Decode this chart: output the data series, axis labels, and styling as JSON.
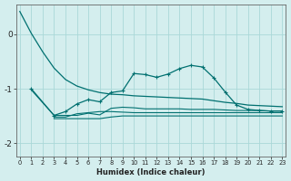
{
  "xlabel": "Humidex (Indice chaleur)",
  "background_color": "#d4eeee",
  "grid_color": "#aad8d8",
  "line_color": "#007070",
  "xlim": [
    -0.3,
    23.3
  ],
  "ylim": [
    -2.25,
    0.55
  ],
  "yticks": [
    0,
    -1,
    -2
  ],
  "xticks": [
    0,
    1,
    2,
    3,
    4,
    5,
    6,
    7,
    8,
    9,
    10,
    11,
    12,
    13,
    14,
    15,
    16,
    17,
    18,
    19,
    20,
    21,
    22,
    23
  ],
  "line_smooth_x": [
    0,
    1,
    2,
    3,
    4,
    5,
    6,
    7,
    8,
    9,
    10,
    11,
    12,
    13,
    14,
    15,
    16,
    17,
    18,
    19,
    20,
    21,
    22,
    23
  ],
  "line_smooth_y": [
    0.42,
    0.02,
    -0.32,
    -0.62,
    -0.83,
    -0.95,
    -1.02,
    -1.07,
    -1.1,
    -1.11,
    -1.13,
    -1.14,
    -1.15,
    -1.16,
    -1.17,
    -1.18,
    -1.19,
    -1.22,
    -1.25,
    -1.27,
    -1.3,
    -1.31,
    -1.32,
    -1.33
  ],
  "line_wave_x": [
    1,
    3,
    4,
    5,
    6,
    7,
    8,
    9,
    10,
    11,
    12,
    13,
    14,
    15,
    16,
    17,
    18,
    19,
    20,
    21,
    22,
    23
  ],
  "line_wave_y": [
    -1.0,
    -1.49,
    -1.42,
    -1.28,
    -1.2,
    -1.24,
    -1.07,
    -1.04,
    -0.72,
    -0.74,
    -0.79,
    -0.73,
    -0.63,
    -0.57,
    -0.6,
    -0.8,
    -1.06,
    -1.3,
    -1.38,
    -1.4,
    -1.41,
    -1.41
  ],
  "line_mid_x": [
    1,
    3,
    4,
    5,
    6,
    7,
    8,
    9,
    10,
    11,
    12,
    13,
    14,
    15,
    16,
    17,
    18,
    19,
    20,
    21,
    22,
    23
  ],
  "line_mid_y": [
    -1.02,
    -1.49,
    -1.49,
    -1.49,
    -1.45,
    -1.48,
    -1.36,
    -1.34,
    -1.35,
    -1.37,
    -1.37,
    -1.37,
    -1.37,
    -1.38,
    -1.38,
    -1.38,
    -1.39,
    -1.4,
    -1.4,
    -1.4,
    -1.41,
    -1.41
  ],
  "line_low_x": [
    3,
    4,
    5,
    6,
    7,
    8,
    9,
    10,
    11,
    12,
    13,
    14,
    15,
    16,
    17,
    18,
    19,
    20,
    21,
    22,
    23
  ],
  "line_low_y": [
    -1.52,
    -1.52,
    -1.46,
    -1.44,
    -1.42,
    -1.42,
    -1.43,
    -1.44,
    -1.44,
    -1.44,
    -1.44,
    -1.44,
    -1.44,
    -1.44,
    -1.44,
    -1.44,
    -1.44,
    -1.44,
    -1.44,
    -1.44,
    -1.44
  ],
  "line_bottom_x": [
    3,
    4,
    5,
    6,
    7,
    8,
    9,
    10,
    11,
    12,
    13,
    14,
    15,
    16,
    17,
    18,
    19,
    20,
    21,
    22,
    23
  ],
  "line_bottom_y": [
    -1.55,
    -1.55,
    -1.55,
    -1.55,
    -1.55,
    -1.52,
    -1.5,
    -1.5,
    -1.5,
    -1.5,
    -1.5,
    -1.5,
    -1.5,
    -1.5,
    -1.5,
    -1.5,
    -1.5,
    -1.5,
    -1.5,
    -1.5,
    -1.5
  ]
}
